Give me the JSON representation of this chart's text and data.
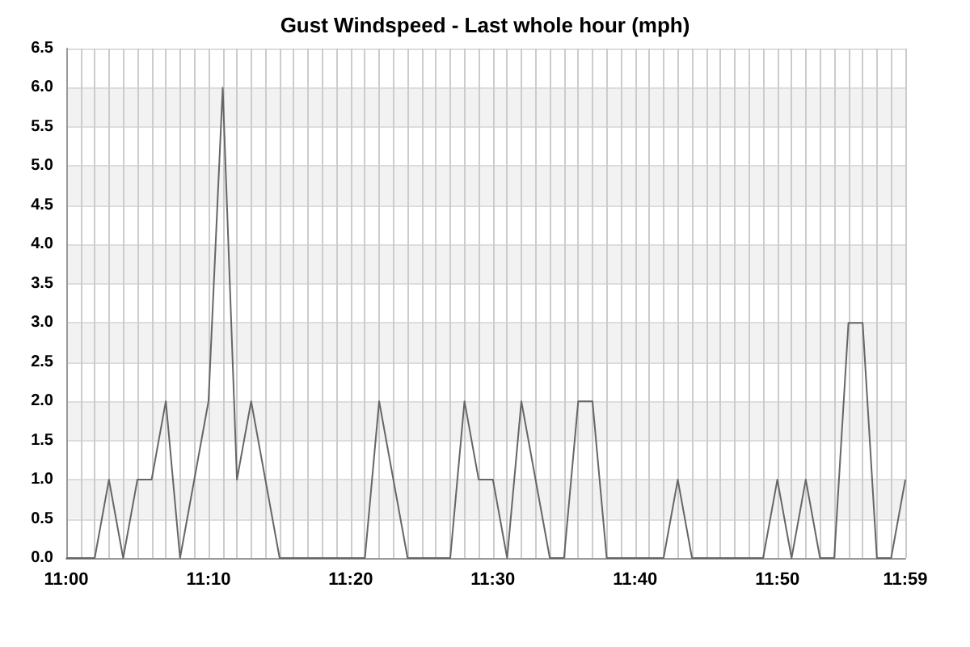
{
  "chart_data": {
    "type": "line",
    "title": "Gust Windspeed - Last whole hour (mph)",
    "categories": [
      "11:00",
      null,
      null,
      null,
      null,
      null,
      null,
      null,
      null,
      null,
      "11:10",
      null,
      null,
      null,
      null,
      null,
      null,
      null,
      null,
      null,
      "11:20",
      null,
      null,
      null,
      null,
      null,
      null,
      null,
      null,
      null,
      "11:30",
      null,
      null,
      null,
      null,
      null,
      null,
      null,
      null,
      null,
      "11:40",
      null,
      null,
      null,
      null,
      null,
      null,
      null,
      null,
      null,
      "11:50",
      null,
      null,
      null,
      null,
      null,
      null,
      null,
      null,
      "11:59"
    ],
    "series": [
      {
        "color": "#666666",
        "values": [
          0,
          0,
          0,
          1,
          0,
          1,
          1,
          2,
          0,
          1,
          2,
          6,
          1,
          2,
          1,
          0,
          0,
          0,
          0,
          0,
          0,
          0,
          2,
          1,
          0,
          0,
          0,
          0,
          2,
          1,
          1,
          0,
          2,
          1,
          0,
          0,
          2,
          2,
          0,
          0,
          0,
          0,
          0,
          1,
          0,
          0,
          0,
          0,
          0,
          0,
          1,
          0,
          1,
          0,
          0,
          3,
          3,
          0,
          0,
          1
        ]
      }
    ],
    "ylim": [
      0,
      6.5
    ],
    "yticks": [
      {
        "value": 0,
        "label": "0.0"
      },
      {
        "value": 0.5,
        "label": "0.5"
      },
      {
        "value": 1,
        "label": "1.0"
      },
      {
        "value": 1.5,
        "label": "1.5"
      },
      {
        "value": 2,
        "label": "2.0"
      },
      {
        "value": 2.5,
        "label": "2.5"
      },
      {
        "value": 3,
        "label": "3.0"
      },
      {
        "value": 3.5,
        "label": "3.5"
      },
      {
        "value": 4,
        "label": "4.0"
      },
      {
        "value": 4.5,
        "label": "4.5"
      },
      {
        "value": 5,
        "label": "5.0"
      },
      {
        "value": 5.5,
        "label": "5.5"
      },
      {
        "value": 6,
        "label": "6.0"
      },
      {
        "value": 6.5,
        "label": "6.5"
      }
    ],
    "grid": true,
    "marker": "none",
    "line_style": "solid"
  }
}
